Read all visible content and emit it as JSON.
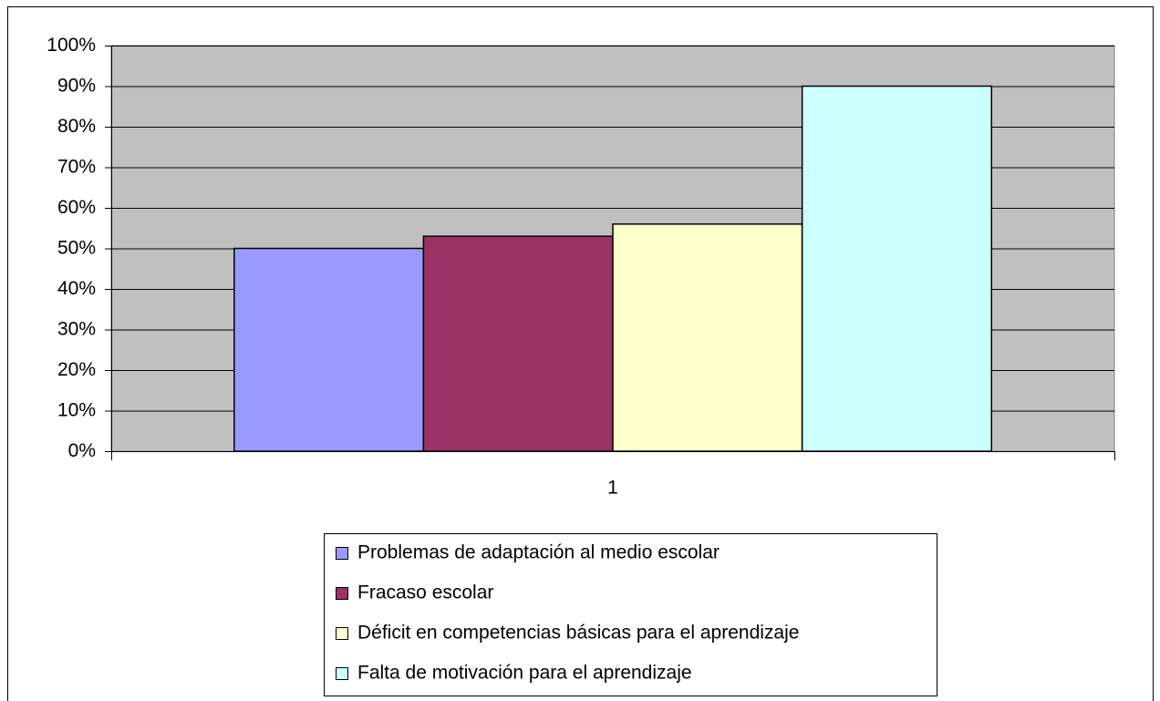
{
  "chart_data": {
    "type": "bar",
    "categories": [
      "1"
    ],
    "series": [
      {
        "name": "Problemas de adaptación al medio escolar",
        "color": "#9999ff",
        "values": [
          50
        ]
      },
      {
        "name": "Fracaso escolar",
        "color": "#993366",
        "values": [
          53
        ]
      },
      {
        "name": "Déficit en competencias básicas para el aprendizaje",
        "color": "#ffffcc",
        "values": [
          56
        ]
      },
      {
        "name": "Falta de motivación para el aprendizaje",
        "color": "#ccffff",
        "values": [
          90
        ]
      }
    ],
    "ylim": [
      0,
      100
    ],
    "yticks": [
      {
        "value": 0,
        "label": "0%"
      },
      {
        "value": 10,
        "label": "10%"
      },
      {
        "value": 20,
        "label": "20%"
      },
      {
        "value": 30,
        "label": "30%"
      },
      {
        "value": 40,
        "label": "40%"
      },
      {
        "value": 50,
        "label": "50%"
      },
      {
        "value": 60,
        "label": "60%"
      },
      {
        "value": 70,
        "label": "70%"
      },
      {
        "value": 80,
        "label": "80%"
      },
      {
        "value": 90,
        "label": "90%"
      },
      {
        "value": 100,
        "label": "100%"
      }
    ],
    "grid": true,
    "plot_background": "#c0c0c0",
    "legend": "bottom"
  }
}
